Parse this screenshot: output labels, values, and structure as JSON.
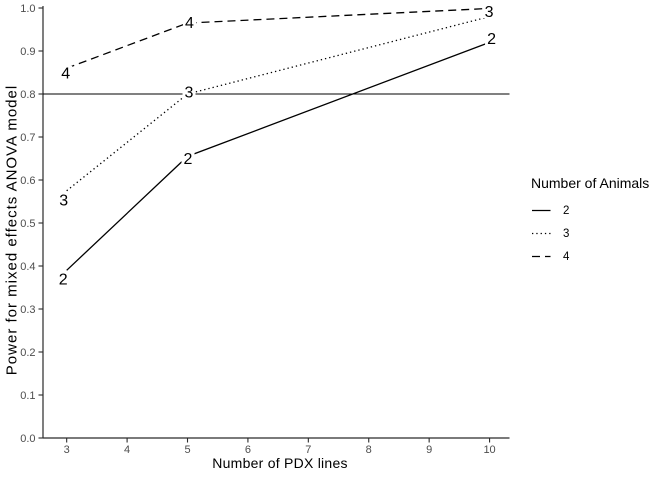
{
  "chart_data": {
    "type": "line",
    "title": "",
    "xlabel": "Number of PDX lines",
    "ylabel": "Power for mixed effects ANOVA model",
    "x_ticks": [
      "3",
      "4",
      "5",
      "6",
      "7",
      "8",
      "9",
      "10"
    ],
    "y_ticks": [
      "0.0",
      "0.1",
      "0.2",
      "0.3",
      "0.4",
      "0.5",
      "0.6",
      "0.7",
      "0.8",
      "0.9",
      "1.0"
    ],
    "xlim": [
      2.608,
      10.33
    ],
    "ylim": [
      0,
      1
    ],
    "grid": "off",
    "legend_position": "right",
    "reference_line": {
      "y": 0.8,
      "style": "solid"
    },
    "series": [
      {
        "name": "2",
        "animals": 2,
        "linestyle": "solid",
        "x": [
          3,
          5,
          10
        ],
        "y": [
          0.39,
          0.655,
          0.92
        ],
        "point_labels": [
          {
            "text": "2",
            "dx": -3.5,
            "dy": 8.7
          },
          {
            "text": "2",
            "dx": 0.5,
            "dy": 2
          },
          {
            "text": "2",
            "dx": 2,
            "dy": -4
          }
        ],
        "label_z": 0
      },
      {
        "name": "3",
        "animals": 3,
        "linestyle": "dotted",
        "x": [
          3,
          5,
          10
        ],
        "y": [
          0.575,
          0.8,
          0.98
        ],
        "point_labels": [
          {
            "text": "3",
            "dx": -3,
            "dy": 8.9
          },
          {
            "text": "3",
            "dx": 1.5,
            "dy": -2
          },
          {
            "text": "3",
            "dx": -0.5,
            "dy": -5.5
          }
        ],
        "label_z": 2
      },
      {
        "name": "4",
        "animals": 4,
        "linestyle": "dashed",
        "x": [
          3,
          5,
          10
        ],
        "y": [
          0.86,
          0.965,
          0.999
        ],
        "point_labels": [
          {
            "text": "4",
            "dx": -1,
            "dy": 4.6
          },
          {
            "text": "4",
            "dx": 2,
            "dy": -1
          },
          {
            "text": "4",
            "dx": 1.5,
            "dy": 2
          }
        ],
        "label_z": 1
      }
    ],
    "legend": {
      "title": "Number of Animals",
      "entries": [
        {
          "label": "2",
          "linestyle": "solid"
        },
        {
          "label": "3",
          "linestyle": "dotted"
        },
        {
          "label": "4",
          "linestyle": "dashed"
        }
      ]
    },
    "colors": {
      "line": "#000000",
      "axis": "#2a2a2a",
      "tick_label": "#4d4d4d",
      "background": "#ffffff"
    }
  }
}
